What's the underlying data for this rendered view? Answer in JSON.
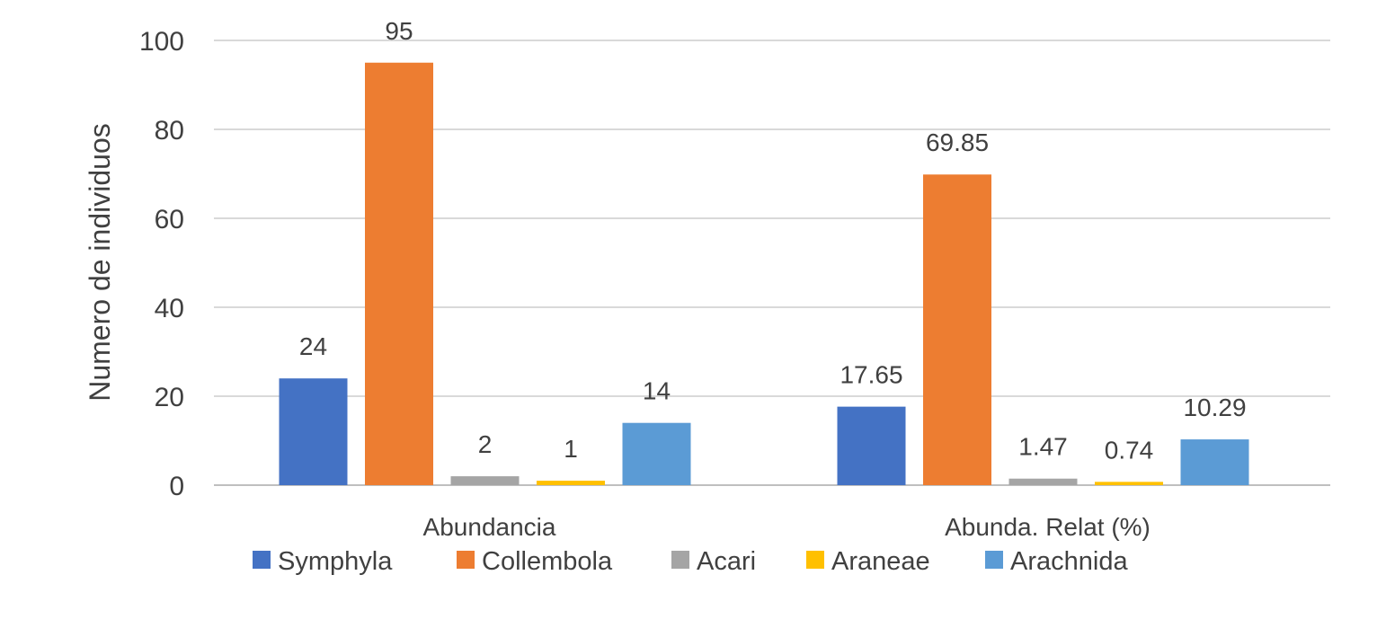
{
  "chart_data": {
    "type": "bar",
    "title": "",
    "xlabel": "",
    "ylabel": "Numero de individuos",
    "ylim": [
      0,
      100
    ],
    "yticks": [
      0,
      20,
      40,
      60,
      80,
      100
    ],
    "grid": true,
    "legend_position": "bottom",
    "categories": [
      "Abundancia",
      "Abunda. Relat (%)"
    ],
    "series": [
      {
        "name": "Symphyla",
        "color": "#4472C4",
        "values": [
          24,
          17.65
        ],
        "labels": [
          "24",
          "17.65"
        ]
      },
      {
        "name": "Collembola",
        "color": "#ED7D31",
        "values": [
          95,
          69.85
        ],
        "labels": [
          "95",
          "69.85"
        ]
      },
      {
        "name": "Acari",
        "color": "#A5A5A5",
        "values": [
          2,
          1.47
        ],
        "labels": [
          "2",
          "1.47"
        ]
      },
      {
        "name": "Araneae",
        "color": "#FFC000",
        "values": [
          1,
          0.74
        ],
        "labels": [
          "1",
          "0.74"
        ]
      },
      {
        "name": "Arachnida",
        "color": "#5B9BD5",
        "values": [
          14,
          10.29
        ],
        "labels": [
          "14",
          "10.29"
        ]
      }
    ]
  }
}
